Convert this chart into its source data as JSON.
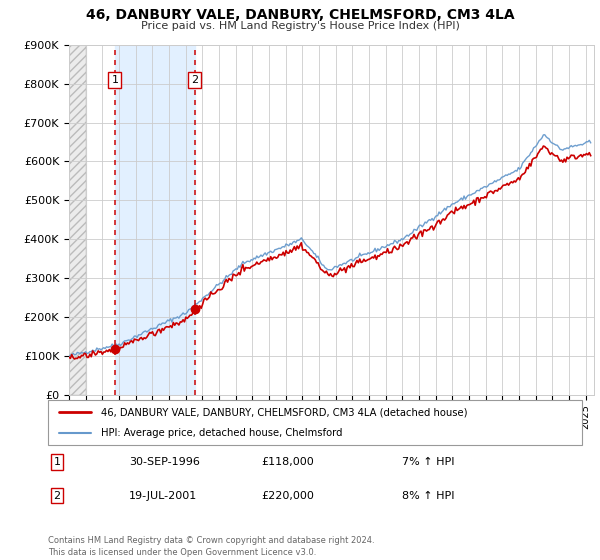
{
  "title": "46, DANBURY VALE, DANBURY, CHELMSFORD, CM3 4LA",
  "subtitle": "Price paid vs. HM Land Registry's House Price Index (HPI)",
  "legend_line1": "46, DANBURY VALE, DANBURY, CHELMSFORD, CM3 4LA (detached house)",
  "legend_line2": "HPI: Average price, detached house, Chelmsford",
  "transaction1_date": "30-SEP-1996",
  "transaction1_price": "£118,000",
  "transaction1_hpi": "7% ↑ HPI",
  "transaction1_year": 1996.75,
  "transaction1_value": 118000,
  "transaction2_date": "19-JUL-2001",
  "transaction2_price": "£220,000",
  "transaction2_hpi": "8% ↑ HPI",
  "transaction2_year": 2001.54,
  "transaction2_value": 220000,
  "ylim": [
    0,
    900000
  ],
  "yticks": [
    0,
    100000,
    200000,
    300000,
    400000,
    500000,
    600000,
    700000,
    800000,
    900000
  ],
  "ytick_labels": [
    "£0",
    "£100K",
    "£200K",
    "£300K",
    "£400K",
    "£500K",
    "£600K",
    "£700K",
    "£800K",
    "£900K"
  ],
  "xlim_start": 1994.0,
  "xlim_end": 2025.5,
  "red_line_color": "#cc0000",
  "blue_line_color": "#6699cc",
  "blue_bg_color": "#ddeeff",
  "footer_text": "Contains HM Land Registry data © Crown copyright and database right 2024.\nThis data is licensed under the Open Government Licence v3.0."
}
